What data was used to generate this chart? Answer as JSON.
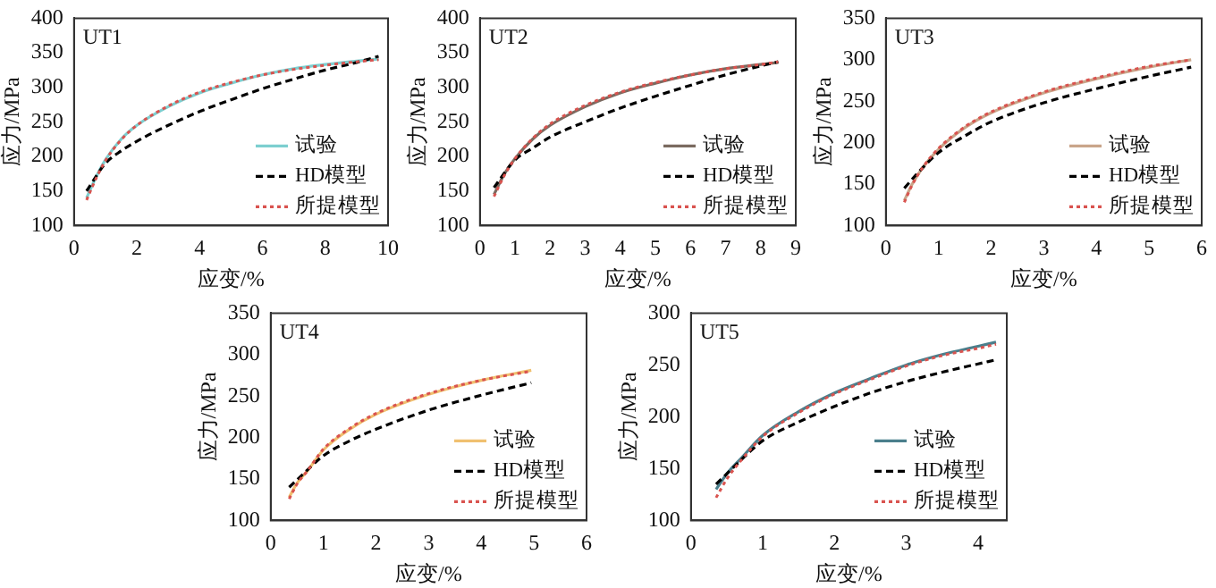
{
  "chart_data": [
    {
      "type": "line",
      "title": "UT1",
      "xlabel": "应变/%",
      "ylabel": "应力/MPa",
      "xlim": [
        0,
        10
      ],
      "xticks": [
        0,
        2,
        4,
        6,
        8,
        10
      ],
      "ylim": [
        100,
        400
      ],
      "yticks": [
        100,
        150,
        200,
        250,
        300,
        350,
        400
      ],
      "legend": "bottom right",
      "marker": "none",
      "series": [
        {
          "name": "试验",
          "color": "#7ccfd0",
          "line_style": "solid",
          "x": [
            0.4,
            0.7,
            1,
            1.5,
            2,
            3,
            4,
            5,
            6,
            7,
            8,
            9,
            9.7
          ],
          "values": [
            140,
            170,
            195,
            225,
            245,
            272,
            292,
            306,
            318,
            327,
            333,
            338,
            341
          ]
        },
        {
          "name": "HD模型",
          "color": "#000000",
          "line_style": "dashed",
          "x": [
            0.4,
            1,
            1.5,
            2,
            3,
            4,
            5,
            6,
            7,
            8,
            9,
            9.7
          ],
          "values": [
            150,
            190,
            208,
            222,
            245,
            265,
            282,
            298,
            312,
            325,
            336,
            345
          ]
        },
        {
          "name": "所提模型",
          "color": "#d9534f",
          "line_style": "dotted",
          "x": [
            0.4,
            0.7,
            1,
            1.5,
            2,
            3,
            4,
            5,
            6,
            7,
            8,
            9,
            9.7
          ],
          "values": [
            137,
            168,
            194,
            224,
            245,
            273,
            293,
            307,
            318,
            326,
            332,
            337,
            340
          ]
        }
      ]
    },
    {
      "type": "line",
      "title": "UT2",
      "xlabel": "应变/%",
      "ylabel": "应力/MPa",
      "xlim": [
        0,
        9
      ],
      "xticks": [
        0,
        1,
        2,
        3,
        4,
        5,
        6,
        7,
        8,
        9
      ],
      "ylim": [
        100,
        400
      ],
      "yticks": [
        100,
        150,
        200,
        250,
        300,
        350,
        400
      ],
      "legend": "bottom right",
      "marker": "none",
      "series": [
        {
          "name": "试验",
          "color": "#7a6a60",
          "line_style": "solid",
          "x": [
            0.4,
            0.7,
            1,
            1.5,
            2,
            3,
            4,
            5,
            6,
            7,
            8,
            8.5
          ],
          "values": [
            145,
            175,
            197,
            225,
            245,
            272,
            292,
            306,
            318,
            327,
            333,
            336
          ]
        },
        {
          "name": "HD模型",
          "color": "#000000",
          "line_style": "dashed",
          "x": [
            0.4,
            1,
            1.5,
            2,
            3,
            4,
            5,
            6,
            7,
            8,
            8.5
          ],
          "values": [
            155,
            195,
            212,
            228,
            250,
            270,
            287,
            303,
            318,
            331,
            337
          ]
        },
        {
          "name": "所提模型",
          "color": "#d9534f",
          "line_style": "dotted",
          "x": [
            0.4,
            0.7,
            1,
            1.5,
            2,
            3,
            4,
            5,
            6,
            7,
            8,
            8.5
          ],
          "values": [
            142,
            173,
            197,
            226,
            247,
            274,
            293,
            307,
            318,
            327,
            333,
            337
          ]
        }
      ]
    },
    {
      "type": "line",
      "title": "UT3",
      "xlabel": "应变/%",
      "ylabel": "应力/MPa",
      "xlim": [
        0,
        6
      ],
      "xticks": [
        0,
        1,
        2,
        3,
        4,
        5,
        6
      ],
      "ylim": [
        100,
        350
      ],
      "yticks": [
        100,
        150,
        200,
        250,
        300,
        350
      ],
      "legend": "bottom right",
      "marker": "none",
      "series": [
        {
          "name": "试验",
          "color": "#c9a58a",
          "line_style": "solid",
          "x": [
            0.35,
            0.5,
            0.7,
            1,
            1.5,
            2,
            3,
            4,
            5,
            5.8
          ],
          "values": [
            130,
            150,
            170,
            192,
            218,
            236,
            260,
            277,
            291,
            300
          ]
        },
        {
          "name": "HD模型",
          "color": "#000000",
          "line_style": "dashed",
          "x": [
            0.35,
            0.6,
            1,
            1.5,
            2,
            3,
            4,
            5,
            5.8
          ],
          "values": [
            145,
            163,
            188,
            208,
            225,
            248,
            265,
            280,
            291
          ]
        },
        {
          "name": "所提模型",
          "color": "#d9534f",
          "line_style": "dotted",
          "x": [
            0.35,
            0.5,
            0.7,
            1,
            1.5,
            2,
            3,
            4,
            5,
            5.8
          ],
          "values": [
            128,
            149,
            170,
            193,
            219,
            237,
            261,
            278,
            292,
            300
          ]
        }
      ]
    },
    {
      "type": "line",
      "title": "UT4",
      "xlabel": "应变/%",
      "ylabel": "应力/MPa",
      "xlim": [
        0,
        6
      ],
      "xticks": [
        0,
        1,
        2,
        3,
        4,
        5,
        6
      ],
      "ylim": [
        100,
        350
      ],
      "yticks": [
        100,
        150,
        200,
        250,
        300,
        350
      ],
      "legend": "bottom right",
      "marker": "none",
      "series": [
        {
          "name": "试验",
          "color": "#f0c070",
          "line_style": "solid",
          "x": [
            0.35,
            0.5,
            0.7,
            1,
            1.5,
            2,
            3,
            4,
            4.95
          ],
          "values": [
            128,
            145,
            160,
            185,
            210,
            228,
            252,
            269,
            281
          ]
        },
        {
          "name": "HD模型",
          "color": "#000000",
          "line_style": "dashed",
          "x": [
            0.35,
            0.6,
            1,
            1.5,
            2,
            3,
            4,
            4.95
          ],
          "values": [
            140,
            155,
            178,
            196,
            210,
            233,
            251,
            266
          ]
        },
        {
          "name": "所提模型",
          "color": "#d9534f",
          "line_style": "dotted",
          "x": [
            0.35,
            0.5,
            0.7,
            1,
            1.5,
            2,
            3,
            4,
            4.95
          ],
          "values": [
            126,
            144,
            160,
            186,
            211,
            229,
            253,
            269,
            280
          ]
        }
      ]
    },
    {
      "type": "line",
      "title": "UT5",
      "xlabel": "应变/%",
      "ylabel": "应力/MPa",
      "xlim": [
        0,
        4.4
      ],
      "xticks": [
        0,
        1,
        2,
        3,
        4
      ],
      "ylim": [
        100,
        300
      ],
      "yticks": [
        100,
        150,
        200,
        250,
        300
      ],
      "legend": "bottom right",
      "marker": "none",
      "series": [
        {
          "name": "试验",
          "color": "#4a7f8c",
          "line_style": "solid",
          "x": [
            0.35,
            0.5,
            0.7,
            1,
            1.5,
            2,
            2.5,
            3,
            3.5,
            4,
            4.25
          ],
          "values": [
            130,
            145,
            160,
            182,
            205,
            223,
            237,
            250,
            260,
            268,
            272
          ]
        },
        {
          "name": "HD模型",
          "color": "#000000",
          "line_style": "dashed",
          "x": [
            0.35,
            0.5,
            0.8,
            1,
            1.5,
            2,
            2.5,
            3,
            3.5,
            4,
            4.25
          ],
          "values": [
            135,
            145,
            165,
            177,
            195,
            210,
            223,
            234,
            243,
            251,
            255
          ]
        },
        {
          "name": "所提模型",
          "color": "#d9534f",
          "line_style": "dotted",
          "x": [
            0.35,
            0.5,
            0.7,
            1,
            1.5,
            2,
            2.5,
            3,
            3.5,
            4,
            4.25
          ],
          "values": [
            122,
            140,
            158,
            181,
            204,
            222,
            236,
            249,
            259,
            266,
            270
          ]
        }
      ]
    }
  ]
}
